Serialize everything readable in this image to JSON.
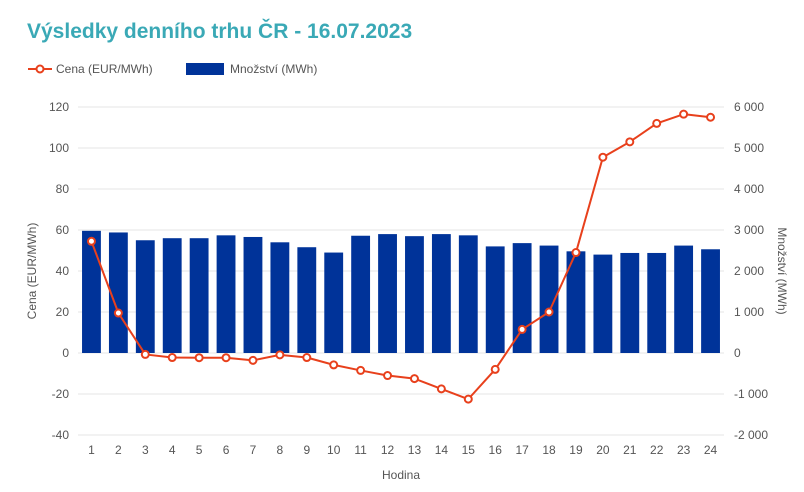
{
  "page": {
    "title": "Výsledky denního trhu ČR - 16.07.2023"
  },
  "legend": {
    "price_label": "Cena (EUR/MWh)",
    "volume_label": "Množství (MWh)"
  },
  "colors": {
    "title": "#3aa9b6",
    "price_line": "#e8401c",
    "volume_bar": "#003399",
    "grid": "#e6e6e6",
    "text": "#555555"
  },
  "chart_data": {
    "type": "bar",
    "combo": "bar+line",
    "xlabel": "Hodina",
    "categories": [
      "1",
      "2",
      "3",
      "4",
      "5",
      "6",
      "7",
      "8",
      "9",
      "10",
      "11",
      "12",
      "13",
      "14",
      "15",
      "16",
      "17",
      "18",
      "19",
      "20",
      "21",
      "22",
      "23",
      "24"
    ],
    "series": [
      {
        "name": "Množství (MWh)",
        "type": "bar",
        "axis": "right",
        "values": [
          2980,
          2940,
          2750,
          2800,
          2800,
          2870,
          2830,
          2700,
          2580,
          2450,
          2860,
          2900,
          2850,
          2900,
          2870,
          2600,
          2680,
          2620,
          2480,
          2400,
          2440,
          2440,
          2620,
          2530
        ]
      },
      {
        "name": "Cena (EUR/MWh)",
        "type": "line",
        "axis": "left",
        "values": [
          54.5,
          19.5,
          -0.7,
          -2.2,
          -2.3,
          -2.3,
          -3.6,
          -0.9,
          -2.2,
          -5.8,
          -8.5,
          -11,
          -12.5,
          -17.5,
          -22.5,
          -8,
          11.5,
          20,
          49,
          95.5,
          103,
          112,
          116.5,
          115
        ]
      }
    ],
    "y_left": {
      "label": "Cena (EUR/MWh)",
      "range": [
        -40,
        120
      ],
      "ticks": [
        "-40",
        "-20",
        "0",
        "20",
        "40",
        "60",
        "80",
        "100",
        "120"
      ]
    },
    "y_right": {
      "label": "Množství (MWh)",
      "range": [
        -2000,
        6000
      ],
      "ticks": [
        "-2 000",
        "-1 000",
        "0",
        "1 000",
        "2 000",
        "3 000",
        "4 000",
        "5 000",
        "6 000"
      ]
    },
    "grid": true,
    "legend_position": "top-left"
  }
}
